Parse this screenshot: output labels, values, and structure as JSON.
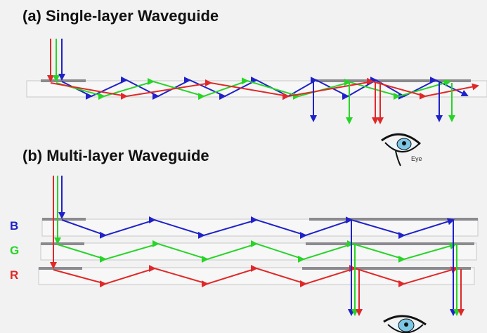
{
  "panels": [
    {
      "title": "(a) Single-layer Waveguide",
      "eye_label": "Eye"
    },
    {
      "title": "(b) Multi-layer Waveguide",
      "layers": [
        "B",
        "G",
        "R"
      ]
    }
  ]
}
